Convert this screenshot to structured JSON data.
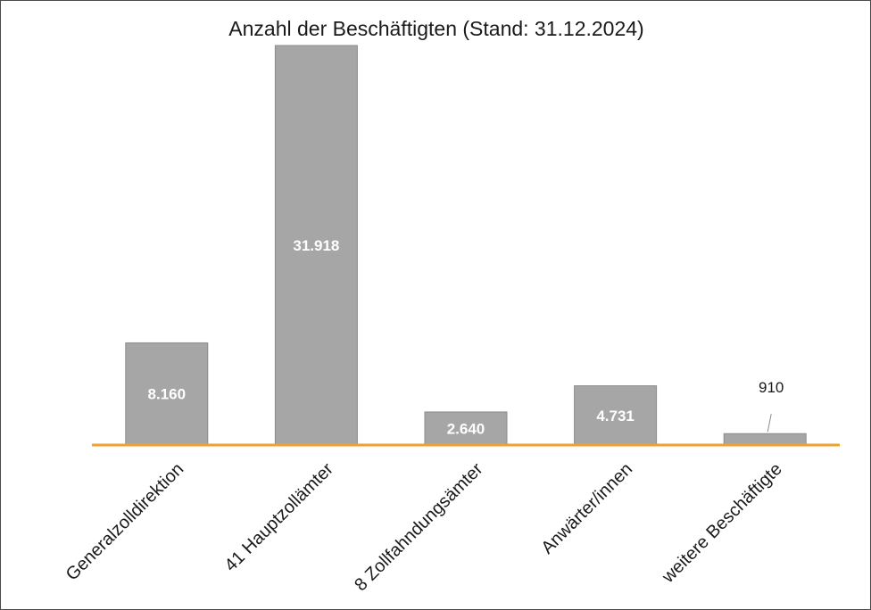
{
  "chart_data": {
    "type": "bar",
    "title": "Anzahl der Beschäftigten (Stand: 31.12.2024)",
    "categories": [
      "Generalzolldirektion",
      "41 Hauptzollämter",
      "8 Zollfahndungsämter",
      "Anwärter/innen",
      "weitere Beschäftigte"
    ],
    "values": [
      8160,
      31918,
      2640,
      4731,
      910
    ],
    "data_labels": [
      "8.160",
      "31.918",
      "2.640",
      "4.731",
      "910"
    ],
    "xlabel": "",
    "ylabel": "",
    "ylim": [
      0,
      31918
    ],
    "grid": false,
    "legend": "none",
    "colors": {
      "bar": "#a6a6a6",
      "bar_edge": "#8c8c8c",
      "axis": "#f0a12b",
      "inside_label": "#ffffff",
      "text": "#1a1a1a"
    }
  }
}
